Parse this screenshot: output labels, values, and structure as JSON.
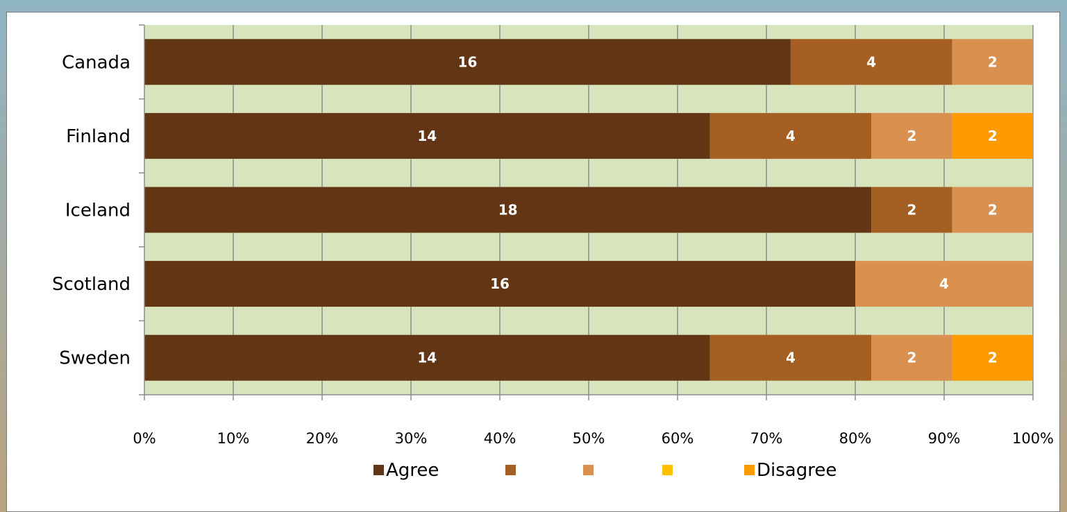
{
  "chart_data": {
    "type": "bar",
    "orientation": "horizontal",
    "stacking": "percent",
    "categories": [
      "Canada",
      "Finland",
      "Iceland",
      "Scotland",
      "Sweden"
    ],
    "series": [
      {
        "name": "Agree",
        "color": "#623515",
        "values": [
          16,
          14,
          18,
          16,
          14
        ]
      },
      {
        "name": "",
        "color": "#a65f22",
        "values": [
          4,
          4,
          2,
          0,
          4
        ]
      },
      {
        "name": "",
        "color": "#da9150",
        "values": [
          2,
          2,
          2,
          4,
          2
        ]
      },
      {
        "name": "",
        "color": "#ffc000",
        "values": [
          0,
          0,
          0,
          0,
          0
        ]
      },
      {
        "name": "Disagree",
        "color": "#ff9900",
        "values": [
          0,
          2,
          0,
          0,
          2
        ]
      }
    ],
    "x_ticks": [
      "0%",
      "10%",
      "20%",
      "30%",
      "40%",
      "50%",
      "60%",
      "70%",
      "80%",
      "90%",
      "100%"
    ],
    "xlim": [
      0,
      100
    ],
    "grid": true,
    "plot_background": "#d8e4bc",
    "legend": "bottom",
    "title": "",
    "xlabel": "",
    "ylabel": ""
  }
}
